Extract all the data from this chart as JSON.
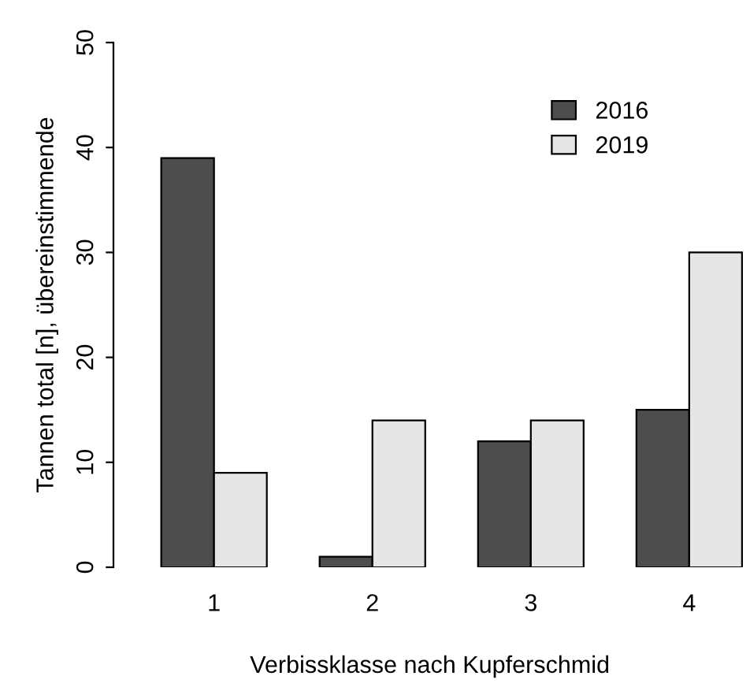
{
  "chart_data": {
    "type": "bar",
    "xlabel": "Verbissklasse nach Kupferschmid",
    "ylabel": "Tannen total [n], übereinstimmende",
    "categories": [
      "1",
      "2",
      "3",
      "4"
    ],
    "series": [
      {
        "name": "2016",
        "color": "#4d4d4d",
        "values": [
          39,
          1,
          12,
          15
        ]
      },
      {
        "name": "2019",
        "color": "#e6e6e6",
        "values": [
          9,
          14,
          14,
          30
        ]
      }
    ],
    "ylim": [
      0,
      50
    ],
    "yticks": [
      0,
      10,
      20,
      30,
      40,
      50
    ],
    "grid": false,
    "legend": "top right"
  }
}
